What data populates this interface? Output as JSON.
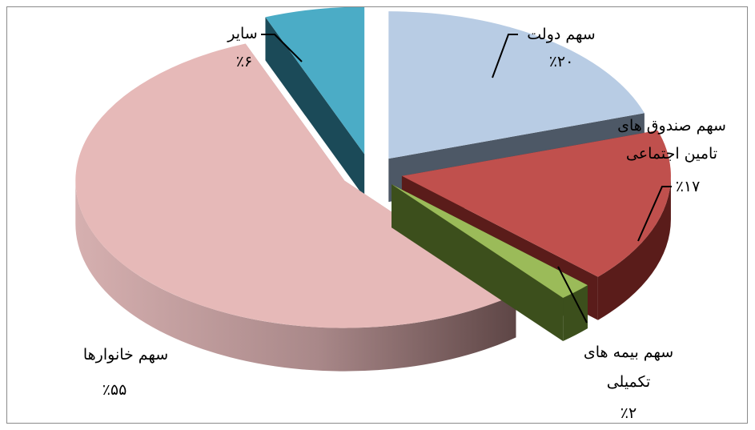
{
  "chart_data": {
    "type": "pie",
    "style": "3d-exploded",
    "slices": [
      {
        "label": "سهم دولت",
        "value": 20,
        "value_label": "٪۲۰",
        "color": "#b8cce4",
        "side_color": "#4d5866"
      },
      {
        "label_lines": [
          "سهم صندوق های",
          "تامین اجتماعی"
        ],
        "value": 17,
        "value_label": "٪۱۷",
        "color": "#c0504d",
        "side_color": "#5a1c1a"
      },
      {
        "label_lines": [
          "سهم بیمه های",
          "تکمیلی"
        ],
        "value": 2,
        "value_label": "٪۲",
        "color": "#9bbb59",
        "side_color": "#3c4f1c"
      },
      {
        "label": "سهم خانوارها",
        "value": 55,
        "value_label": "٪۵۵",
        "color": "#e6b9b8",
        "side_color": "#b58f90"
      },
      {
        "label": "سایر",
        "value": 6,
        "value_label": "٪۶",
        "color": "#4bacc6",
        "side_color": "#1b4a58"
      }
    ]
  }
}
